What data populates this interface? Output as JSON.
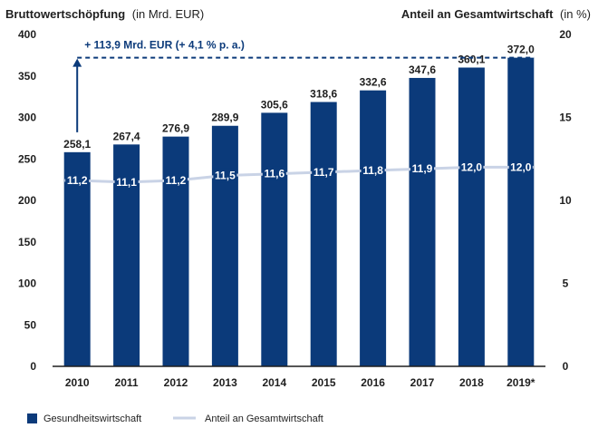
{
  "colors": {
    "bar": "#0b3a7a",
    "line": "#c9d3e6",
    "axis": "#1f1f1f"
  },
  "chart_data": {
    "type": "bar",
    "title_left": "Bruttowertschöpfung",
    "title_left_unit": "(in Mrd. EUR)",
    "title_right": "Anteil an Gesamtwirtschaft",
    "title_right_unit": "(in %)",
    "categories": [
      "2010",
      "2011",
      "2012",
      "2013",
      "2014",
      "2015",
      "2016",
      "2017",
      "2018",
      "2019*"
    ],
    "series": [
      {
        "name": "Gesundheitswirtschaft",
        "type": "bar",
        "axis": "left",
        "values": [
          258.1,
          267.4,
          276.9,
          289.9,
          305.6,
          318.6,
          332.6,
          347.6,
          360.1,
          372.0
        ],
        "labels": [
          "258,1",
          "267,4",
          "276,9",
          "289,9",
          "305,6",
          "318,6",
          "332,6",
          "347,6",
          "360,1",
          "372,0"
        ]
      },
      {
        "name": "Anteil an Gesamtwirtschaft",
        "type": "line",
        "axis": "right",
        "values": [
          11.2,
          11.1,
          11.2,
          11.5,
          11.6,
          11.7,
          11.8,
          11.9,
          12.0,
          12.0
        ],
        "labels": [
          "11,2",
          "11,1",
          "11,2",
          "11,5",
          "11,6",
          "11,7",
          "11,8",
          "11,9",
          "12,0",
          "12,0"
        ]
      }
    ],
    "y_left": {
      "min": 0,
      "max": 400,
      "ticks": [
        0,
        50,
        100,
        150,
        200,
        250,
        300,
        350,
        400
      ]
    },
    "y_right": {
      "min": 0,
      "max": 20,
      "ticks": [
        0,
        5,
        10,
        15,
        20
      ]
    },
    "annotation": "+ 113,9 Mrd. EUR (+ 4,1 % p. a.)",
    "legend": {
      "position": "bottom-left"
    },
    "grid": false
  }
}
